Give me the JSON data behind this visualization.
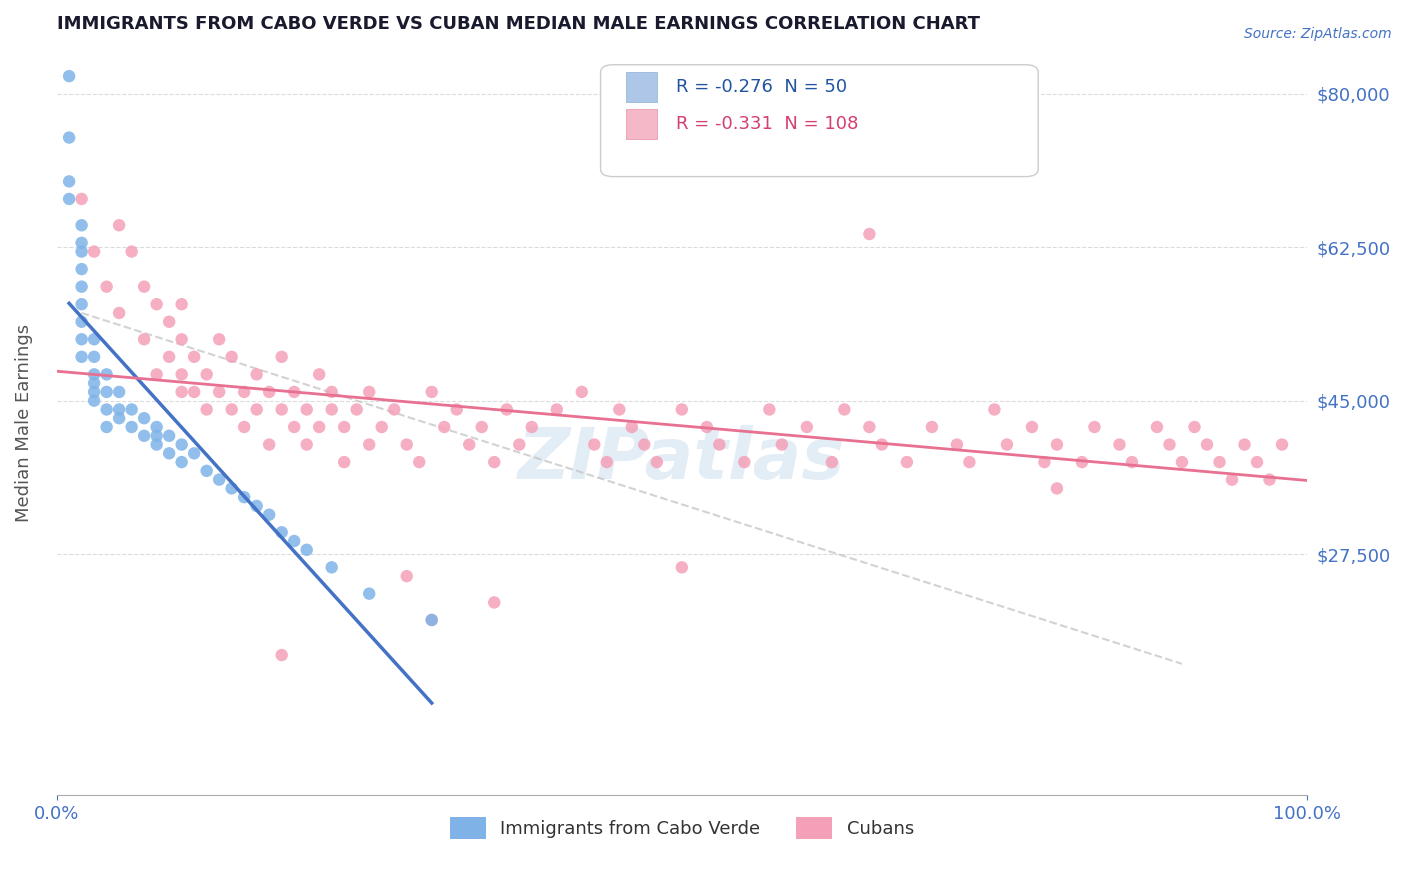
{
  "title": "IMMIGRANTS FROM CABO VERDE VS CUBAN MEDIAN MALE EARNINGS CORRELATION CHART",
  "source_text": "Source: ZipAtlas.com",
  "xlabel": "",
  "ylabel": "Median Male Earnings",
  "watermark": "ZIPatlas",
  "xlim": [
    0.0,
    1.0
  ],
  "ylim": [
    0,
    85000
  ],
  "yticks": [
    0,
    27500,
    45000,
    62500,
    80000
  ],
  "ytick_labels": [
    "",
    "$27,500",
    "$45,000",
    "$62,500",
    "$80,000"
  ],
  "xtick_labels": [
    "0.0%",
    "100.0%"
  ],
  "legend_entries": [
    {
      "label": "Immigrants from Cabo Verde",
      "R": "-0.276",
      "N": "50",
      "color": "#aec6e8",
      "text_color": "#2155a0"
    },
    {
      "label": "Cubans",
      "R": "-0.331",
      "N": "108",
      "color": "#f4b8c8",
      "text_color": "#d44070"
    }
  ],
  "cabo_verde_color": "#7fb3e8",
  "cuban_color": "#f4a0b8",
  "cabo_verde_line_color": "#4472c4",
  "cuban_line_color": "#e87090",
  "dashed_line_color": "#c0c0c0",
  "background_color": "#ffffff",
  "grid_color": "#cccccc",
  "title_color": "#1a1a2e",
  "axis_color": "#4472c4",
  "cabo_verde_scatter": {
    "x": [
      0.01,
      0.01,
      0.01,
      0.01,
      0.02,
      0.02,
      0.02,
      0.02,
      0.02,
      0.02,
      0.02,
      0.02,
      0.02,
      0.03,
      0.03,
      0.03,
      0.03,
      0.03,
      0.03,
      0.04,
      0.04,
      0.04,
      0.04,
      0.05,
      0.05,
      0.05,
      0.06,
      0.06,
      0.07,
      0.07,
      0.08,
      0.08,
      0.08,
      0.09,
      0.09,
      0.1,
      0.1,
      0.11,
      0.12,
      0.13,
      0.14,
      0.15,
      0.16,
      0.17,
      0.18,
      0.19,
      0.2,
      0.22,
      0.25,
      0.3
    ],
    "y": [
      82000,
      75000,
      70000,
      68000,
      65000,
      63000,
      62000,
      60000,
      58000,
      56000,
      54000,
      52000,
      50000,
      52000,
      50000,
      48000,
      47000,
      46000,
      45000,
      48000,
      46000,
      44000,
      42000,
      46000,
      44000,
      43000,
      44000,
      42000,
      43000,
      41000,
      42000,
      41000,
      40000,
      41000,
      39000,
      40000,
      38000,
      39000,
      37000,
      36000,
      35000,
      34000,
      33000,
      32000,
      30000,
      29000,
      28000,
      26000,
      23000,
      20000
    ]
  },
  "cuban_scatter": {
    "x": [
      0.02,
      0.03,
      0.04,
      0.05,
      0.05,
      0.06,
      0.07,
      0.07,
      0.08,
      0.08,
      0.09,
      0.09,
      0.1,
      0.1,
      0.1,
      0.11,
      0.11,
      0.12,
      0.12,
      0.13,
      0.13,
      0.14,
      0.14,
      0.15,
      0.15,
      0.16,
      0.16,
      0.17,
      0.17,
      0.18,
      0.18,
      0.19,
      0.19,
      0.2,
      0.2,
      0.21,
      0.21,
      0.22,
      0.22,
      0.23,
      0.23,
      0.24,
      0.25,
      0.25,
      0.26,
      0.27,
      0.28,
      0.29,
      0.3,
      0.31,
      0.32,
      0.33,
      0.34,
      0.35,
      0.36,
      0.37,
      0.38,
      0.4,
      0.42,
      0.43,
      0.44,
      0.45,
      0.46,
      0.47,
      0.48,
      0.5,
      0.52,
      0.53,
      0.55,
      0.57,
      0.58,
      0.6,
      0.62,
      0.63,
      0.65,
      0.66,
      0.68,
      0.7,
      0.72,
      0.73,
      0.75,
      0.76,
      0.78,
      0.79,
      0.8,
      0.82,
      0.83,
      0.85,
      0.86,
      0.88,
      0.89,
      0.9,
      0.91,
      0.92,
      0.93,
      0.94,
      0.95,
      0.96,
      0.97,
      0.98,
      0.3,
      0.35,
      0.18,
      0.28,
      0.5,
      0.65,
      0.8,
      0.1
    ],
    "y": [
      68000,
      62000,
      58000,
      65000,
      55000,
      62000,
      58000,
      52000,
      56000,
      48000,
      54000,
      50000,
      52000,
      48000,
      56000,
      50000,
      46000,
      48000,
      44000,
      46000,
      52000,
      44000,
      50000,
      46000,
      42000,
      48000,
      44000,
      46000,
      40000,
      44000,
      50000,
      42000,
      46000,
      44000,
      40000,
      48000,
      42000,
      44000,
      46000,
      42000,
      38000,
      44000,
      46000,
      40000,
      42000,
      44000,
      40000,
      38000,
      46000,
      42000,
      44000,
      40000,
      42000,
      38000,
      44000,
      40000,
      42000,
      44000,
      46000,
      40000,
      38000,
      44000,
      42000,
      40000,
      38000,
      44000,
      42000,
      40000,
      38000,
      44000,
      40000,
      42000,
      38000,
      44000,
      42000,
      40000,
      38000,
      42000,
      40000,
      38000,
      44000,
      40000,
      42000,
      38000,
      40000,
      38000,
      42000,
      40000,
      38000,
      42000,
      40000,
      38000,
      42000,
      40000,
      38000,
      36000,
      40000,
      38000,
      36000,
      40000,
      20000,
      22000,
      16000,
      25000,
      26000,
      64000,
      35000,
      46000
    ]
  }
}
